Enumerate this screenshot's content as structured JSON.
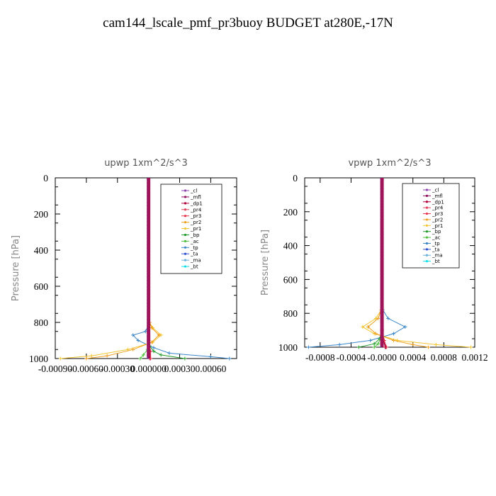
{
  "title": "cam144_lscale_pmf_pr3buoy  BUDGET at280E,-17N",
  "colors": {
    "_cl": "#8e44ad",
    "_mfl": "#8e1060",
    "_dp1": "#b0003a",
    "_pr4": "#e0405a",
    "_pr3": "#e8334a",
    "_pr2": "#f0a020",
    "_pr1": "#f2c530",
    "_bp": "#1f9a2a",
    "_ac": "#4cc03a",
    "_tp": "#3a86c8",
    "_ta": "#3050d0",
    "_ma": "#6ab0d8",
    "_bt": "#10e0e8"
  },
  "chart_data": [
    {
      "type": "line",
      "title": "upwp   1xm^2/s^3",
      "ylabel": "Pressure [hPa]",
      "xlabel": "",
      "xlim": [
        -0.0009,
        0.00085
      ],
      "ylim": [
        1000,
        0
      ],
      "yticks": [
        0,
        200,
        400,
        600,
        800,
        1000
      ],
      "xticks": [
        -0.0009,
        -0.0006,
        -0.0003,
        0.0,
        0.0003,
        0.0006
      ],
      "xticklabels": [
        "-0.00090",
        "-0.00060",
        "-0.00030",
        "0.000000",
        "0.00030",
        "0.00060"
      ],
      "legend": [
        "_cl",
        "_mfl",
        "_dp1",
        "_pr4",
        "_pr3",
        "_pr2",
        "_pr1",
        "_bp",
        "_ac",
        "_tp",
        "_ta",
        "_ma",
        "_bt"
      ],
      "legend_position": "top-right",
      "series": [
        {
          "name": "_tp",
          "x": [
            0,
            1e-05,
            -3e-05,
            -0.00015,
            -0.0001,
            5e-05,
            0.0002,
            0.0006,
            0.00078
          ],
          "y": [
            0,
            800,
            850,
            870,
            900,
            940,
            970,
            990,
            1000
          ]
        },
        {
          "name": "_pr1",
          "x": [
            0,
            1e-05,
            4e-05,
            0.00012,
            4e-05,
            -0.0002,
            -0.00055,
            -0.00085
          ],
          "y": [
            0,
            800,
            830,
            870,
            910,
            950,
            985,
            1000
          ]
        },
        {
          "name": "_pr2",
          "x": [
            0,
            1e-05,
            3e-05,
            0.0001,
            3e-05,
            -0.00015,
            -0.0004,
            -0.0006
          ],
          "y": [
            0,
            800,
            830,
            870,
            910,
            950,
            985,
            1000
          ]
        },
        {
          "name": "_bp",
          "x": [
            0,
            0.0,
            1e-05,
            5e-05,
            0.00012,
            0.00035
          ],
          "y": [
            0,
            880,
            930,
            960,
            980,
            1000
          ]
        },
        {
          "name": "_ac",
          "x": [
            0,
            0.0,
            -1e-05,
            -5e-05,
            -8e-05
          ],
          "y": [
            0,
            900,
            950,
            980,
            1000
          ]
        },
        {
          "name": "_mfl",
          "x": [
            0,
            0.0,
            1e-05,
            2e-05
          ],
          "y": [
            0,
            900,
            960,
            1000
          ]
        },
        {
          "name": "_dp1",
          "x": [
            0,
            0.0,
            1e-05,
            1e-05
          ],
          "y": [
            0,
            900,
            960,
            1000
          ]
        },
        {
          "name": "_pr3",
          "x": [
            0,
            0.0,
            2e-05,
            2e-05
          ],
          "y": [
            0,
            900,
            960,
            1000
          ]
        }
      ]
    },
    {
      "type": "line",
      "title": "vpwp   1xm^2/s^3",
      "ylabel": "Pressure [hPa]",
      "xlabel": "",
      "xlim": [
        -0.001,
        0.0012
      ],
      "ylim": [
        1000,
        0
      ],
      "yticks": [
        0,
        200,
        400,
        600,
        800,
        1000
      ],
      "xticks": [
        -0.0008,
        -0.0004,
        0.0,
        0.0004,
        0.0008,
        0.0012
      ],
      "xticklabels": [
        "-0.0008",
        "-0.0004",
        "-0.0000",
        "0.0004",
        "0.0008",
        "0.0012"
      ],
      "legend": [
        "_cl",
        "_mfl",
        "_dp1",
        "_pr4",
        "_pr3",
        "_pr2",
        "_pr1",
        "_bp",
        "_ac",
        "_tp",
        "_ta",
        "_ma",
        "_bt"
      ],
      "legend_position": "top-right",
      "series": [
        {
          "name": "_tp",
          "x": [
            0,
            1e-05,
            8e-05,
            0.0003,
            0.00015,
            -0.00015,
            -0.00055,
            -0.00095
          ],
          "y": [
            0,
            780,
            830,
            880,
            920,
            960,
            985,
            1000
          ]
        },
        {
          "name": "_pr1",
          "x": [
            0,
            -1e-05,
            -8e-05,
            -0.00025,
            -0.0001,
            0.0002,
            0.0007,
            0.00115
          ],
          "y": [
            0,
            780,
            830,
            880,
            920,
            960,
            985,
            1000
          ]
        },
        {
          "name": "_pr2",
          "x": [
            0,
            -1e-05,
            -5e-05,
            -0.00018,
            -8e-05,
            0.00015,
            0.0004,
            0.0006
          ],
          "y": [
            0,
            780,
            830,
            880,
            920,
            960,
            985,
            1000
          ]
        },
        {
          "name": "_bp",
          "x": [
            0,
            0.0,
            -3e-05,
            -0.0001,
            -0.0003
          ],
          "y": [
            0,
            900,
            950,
            980,
            1000
          ]
        },
        {
          "name": "_ac",
          "x": [
            0,
            0.0,
            -2e-05,
            -5e-05,
            -0.0001
          ],
          "y": [
            0,
            900,
            950,
            980,
            1000
          ]
        },
        {
          "name": "_mfl",
          "x": [
            0,
            0.0,
            2e-05,
            5e-05
          ],
          "y": [
            0,
            900,
            960,
            1000
          ]
        },
        {
          "name": "_dp1",
          "x": [
            0,
            0.0,
            2e-05,
            4e-05
          ],
          "y": [
            0,
            900,
            960,
            1000
          ]
        },
        {
          "name": "_pr3",
          "x": [
            0,
            0.0,
            3e-05,
            6e-05
          ],
          "y": [
            0,
            900,
            960,
            1000
          ]
        }
      ]
    }
  ]
}
